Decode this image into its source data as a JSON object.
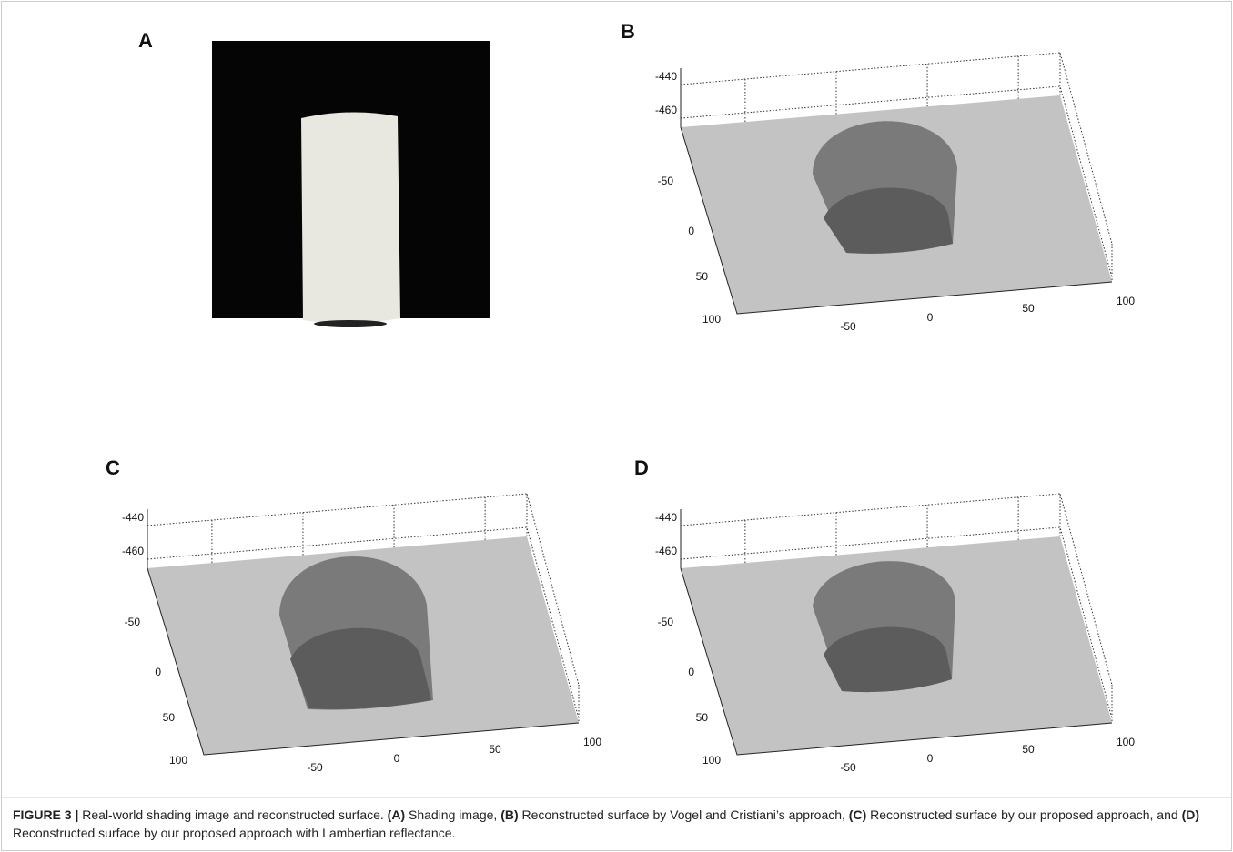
{
  "panels": [
    {
      "label": "A"
    },
    {
      "label": "B",
      "zticks": [
        -440,
        -460
      ],
      "yticks": [
        -50,
        0,
        50,
        100
      ],
      "xticks": [
        -50,
        0,
        50,
        100
      ]
    },
    {
      "label": "C",
      "zticks": [
        -440,
        -460
      ],
      "yticks": [
        -50,
        0,
        50,
        100
      ],
      "xticks": [
        -50,
        0,
        50,
        100
      ]
    },
    {
      "label": "D",
      "zticks": [
        -440,
        -460
      ],
      "yticks": [
        -50,
        0,
        50,
        100
      ],
      "xticks": [
        -50,
        0,
        50,
        100
      ]
    }
  ],
  "caption": {
    "label": "FIGURE 3 |",
    "text": "Real-world shading image and reconstructed surface.",
    "items": [
      {
        "tag": "(A)",
        "text": "Shading image,"
      },
      {
        "tag": "(B)",
        "text": "Reconstructed surface by Vogel and Cristiani’s approach,"
      },
      {
        "tag": "(C)",
        "text": "Reconstructed surface by our proposed approach, and"
      },
      {
        "tag": "(D)",
        "text": "Reconstructed surface by our proposed approach with Lambertian reflectance."
      }
    ]
  }
}
